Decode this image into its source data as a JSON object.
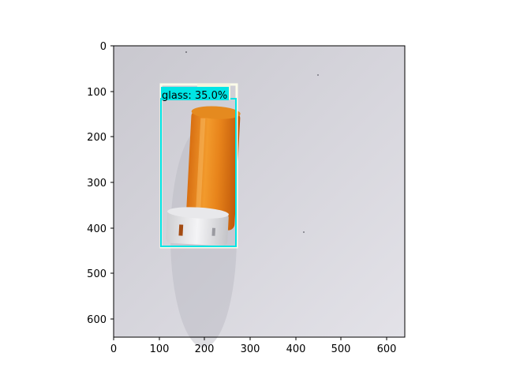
{
  "axes": {
    "x_ticks": [
      "0",
      "100",
      "200",
      "300",
      "400",
      "500",
      "600"
    ],
    "y_ticks": [
      "0",
      "100",
      "200",
      "300",
      "400",
      "500",
      "600"
    ],
    "x_range": [
      0,
      640
    ],
    "y_range": [
      640,
      0
    ]
  },
  "image": {
    "background_color": "#d9d8de",
    "subject": "orange pill bottle with white cap"
  },
  "detections": [
    {
      "label": "glass: 35.0%",
      "box_color": "#00e5e5"
    }
  ]
}
